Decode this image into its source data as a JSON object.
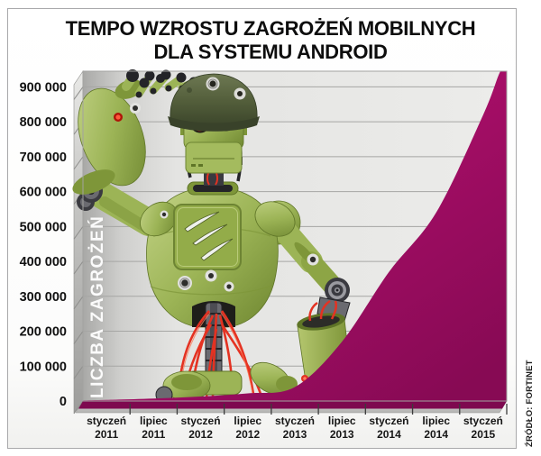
{
  "title": {
    "line1": "TEMPO WZROSTU ZAGROŻEŃ MOBILNYCH",
    "line2": "DLA SYSTEMU ANDROID"
  },
  "y_axis": {
    "title": "LICZBA ZAGROŻEŃ",
    "tick_labels": [
      "900 000",
      "800 000",
      "700 000",
      "600 000",
      "500 000",
      "400 000",
      "300 000",
      "200 000",
      "100 000",
      "0"
    ]
  },
  "x_axis": {
    "ticks": [
      {
        "month": "styczeń",
        "year": "2011"
      },
      {
        "month": "lipiec",
        "year": "2011"
      },
      {
        "month": "styczeń",
        "year": "2012"
      },
      {
        "month": "lipiec",
        "year": "2012"
      },
      {
        "month": "styczeń",
        "year": "2013"
      },
      {
        "month": "lipiec",
        "year": "2013"
      },
      {
        "month": "styczeń",
        "year": "2014"
      },
      {
        "month": "lipiec",
        "year": "2014"
      },
      {
        "month": "styczeń",
        "year": "2015"
      }
    ]
  },
  "source": "ŹRÓDŁO: FORTINET",
  "colors": {
    "area": "#a80e68",
    "area_light": "#c91c80",
    "area_dark": "#870a54",
    "area_front": "#7e094f",
    "robot_green": "#9cb456",
    "helmet_olive": "#4e5937",
    "wire_red": "#e43222",
    "plot_bg": "#e7e7e5",
    "gridline": "#a6a6a4"
  },
  "chart_data": {
    "type": "area",
    "title": "TEMPO WZROSTU ZAGROŻEŃ MOBILNYCH DLA SYSTEMU ANDROID",
    "xlabel": "",
    "ylabel": "LICZBA ZAGROŻEŃ",
    "categories": [
      "styczeń 2011",
      "lipiec 2011",
      "styczeń 2012",
      "lipiec 2012",
      "styczeń 2013",
      "lipiec 2013",
      "styczeń 2014",
      "lipiec 2014",
      "styczeń 2015"
    ],
    "values": [
      3000,
      7000,
      13000,
      22000,
      40000,
      170000,
      370000,
      540000,
      820000
    ],
    "right_edge_value": 945000,
    "ylim": [
      0,
      945000
    ],
    "y_tick_step": 100000,
    "grid": true,
    "legend": false,
    "source": "FORTINET"
  }
}
